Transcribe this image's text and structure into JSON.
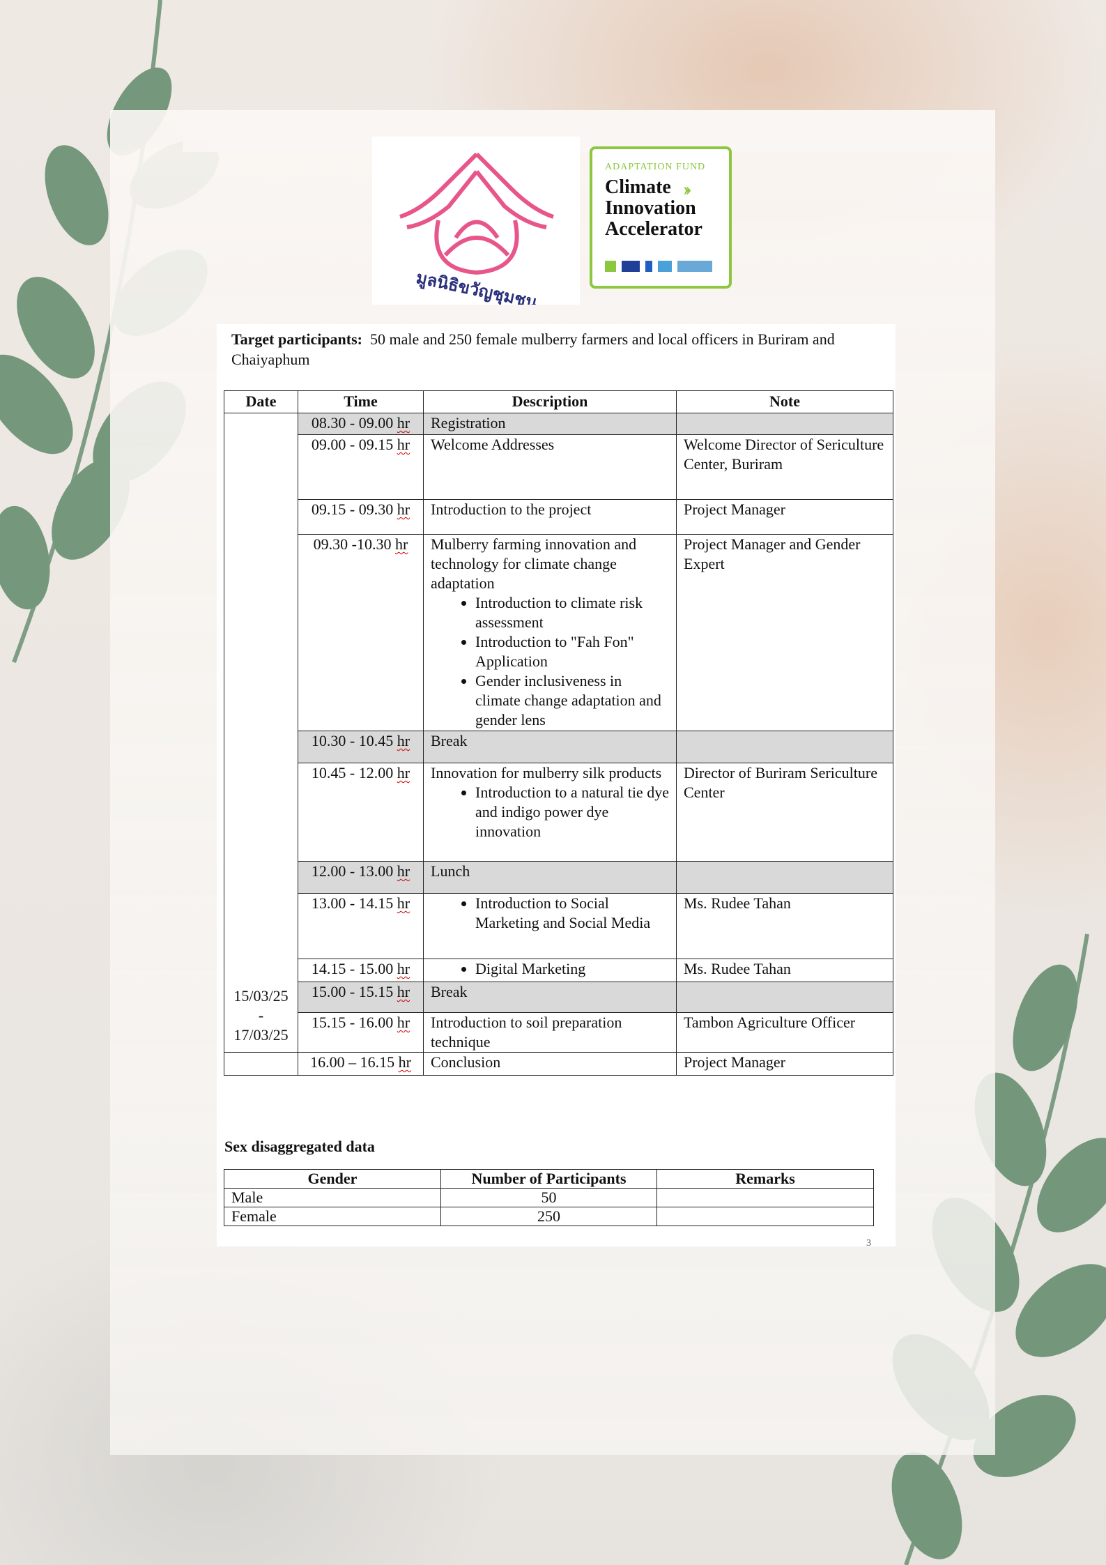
{
  "logos": {
    "left": {
      "name": "Thai community foundation logo",
      "text": "มูลนิธิขวัญชุมชน",
      "color": "#e8558a",
      "text_color": "#2a2f7a"
    },
    "right": {
      "tagline": "ADAPTATION FUND",
      "lines": [
        "Climate",
        "Innovation",
        "Accelerator"
      ],
      "border_color": "#8dc63f"
    }
  },
  "target": {
    "label": "Target participants:",
    "text": "50 male and 250 female mulberry farmers and local officers in Buriram and Chaiyaphum"
  },
  "schedule": {
    "headers": [
      "Date",
      "Time",
      "Description",
      "Note"
    ],
    "date": {
      "start": "15/03/25",
      "sep": "-",
      "end": "17/03/25"
    },
    "rows": [
      {
        "time": "08.30 - 09.00",
        "unit": "hr",
        "desc": "Registration",
        "bullets": [],
        "note": "",
        "grey": true
      },
      {
        "time": "09.00 - 09.15",
        "unit": "hr",
        "desc": "Welcome Addresses",
        "bullets": [],
        "note": "Welcome Director of Sericulture Center, Buriram",
        "grey": false
      },
      {
        "time": "09.15 - 09.30",
        "unit": "hr",
        "desc": "Introduction to the project",
        "bullets": [],
        "note": "Project Manager",
        "grey": false
      },
      {
        "time": "09.30 -10.30",
        "unit": "hr",
        "desc": "Mulberry farming innovation and technology for climate change adaptation",
        "bullets": [
          "Introduction to climate risk assessment",
          "Introduction to \"Fah Fon\" Application",
          "Gender inclusiveness in climate change adaptation and gender lens"
        ],
        "note": "Project Manager and Gender Expert",
        "grey": false
      },
      {
        "time": "10.30 - 10.45",
        "unit": "hr",
        "desc": "Break",
        "bullets": [],
        "note": "",
        "grey": true
      },
      {
        "time": "10.45 - 12.00",
        "unit": "hr",
        "desc": "Innovation for mulberry silk products",
        "bullets": [
          "Introduction to a natural tie dye and indigo power dye innovation"
        ],
        "note": "Director of Buriram Sericulture Center",
        "grey": false
      },
      {
        "time": "12.00 - 13.00",
        "unit": "hr",
        "desc": "Lunch",
        "bullets": [],
        "note": "",
        "grey": true
      },
      {
        "time": "13.00 - 14.15",
        "unit": "hr",
        "desc": "",
        "bullets": [
          "Introduction to Social Marketing and Social Media"
        ],
        "note": "Ms. Rudee Tahan",
        "grey": false
      },
      {
        "time": "14.15 - 15.00",
        "unit": "hr",
        "desc": "",
        "bullets": [
          "Digital Marketing"
        ],
        "note": "Ms. Rudee Tahan",
        "grey": false
      },
      {
        "time": "15.00 - 15.15",
        "unit": "hr",
        "desc": "Break",
        "bullets": [],
        "note": "",
        "grey": true
      },
      {
        "time": "15.15 - 16.00",
        "unit": "hr",
        "desc": "Introduction to soil preparation technique",
        "bullets": [],
        "note": "Tambon Agriculture Officer",
        "grey": false
      },
      {
        "time": "16.00 – 16.15",
        "unit": "hr",
        "desc": "Conclusion",
        "bullets": [],
        "note": "Project Manager",
        "grey": false
      }
    ]
  },
  "sex_data": {
    "title": "Sex disaggregated data",
    "headers": [
      "Gender",
      "Number of Participants",
      "Remarks"
    ],
    "rows": [
      {
        "gender": "Male",
        "count": "50",
        "remarks": ""
      },
      {
        "gender": "Female",
        "count": "250",
        "remarks": ""
      }
    ]
  },
  "page_number": "3",
  "colors": {
    "grey_row": "#d9d9d9",
    "leaf": "#5f8a6a"
  }
}
